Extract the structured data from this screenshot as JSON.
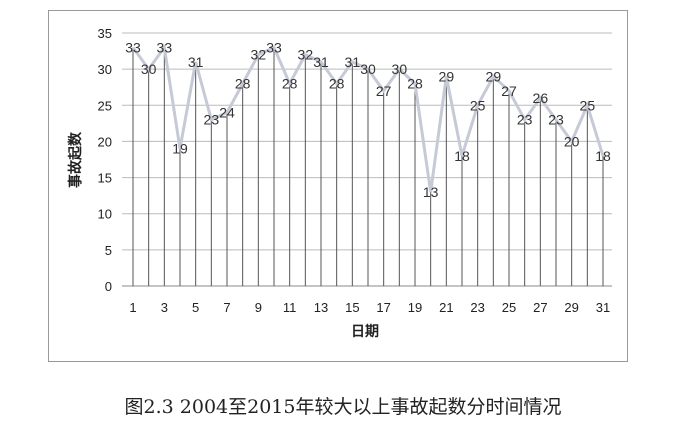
{
  "chart_data": {
    "type": "line",
    "title": "",
    "xlabel": "日期",
    "ylabel": "事故起数",
    "ylim": [
      0,
      35
    ],
    "yticks": [
      0,
      5,
      10,
      15,
      20,
      25,
      30,
      35
    ],
    "xticks": [
      1,
      3,
      5,
      7,
      9,
      11,
      13,
      15,
      17,
      19,
      21,
      23,
      25,
      27,
      29,
      31
    ],
    "x": [
      1,
      2,
      3,
      4,
      5,
      6,
      7,
      8,
      9,
      10,
      11,
      12,
      13,
      14,
      15,
      16,
      17,
      18,
      19,
      20,
      21,
      22,
      23,
      24,
      25,
      26,
      27,
      28,
      29,
      30,
      31
    ],
    "values": [
      33,
      30,
      33,
      19,
      31,
      23,
      24,
      28,
      32,
      33,
      28,
      32,
      31,
      28,
      31,
      30,
      27,
      30,
      28,
      13,
      29,
      18,
      25,
      29,
      27,
      23,
      26,
      23,
      20,
      25,
      18
    ],
    "grid": "horizontal",
    "drop_lines": true,
    "data_labels": true,
    "line_color": "#c5cad6"
  },
  "caption": "图2.3 2004至2015年较大以上事故起数分时间情况"
}
